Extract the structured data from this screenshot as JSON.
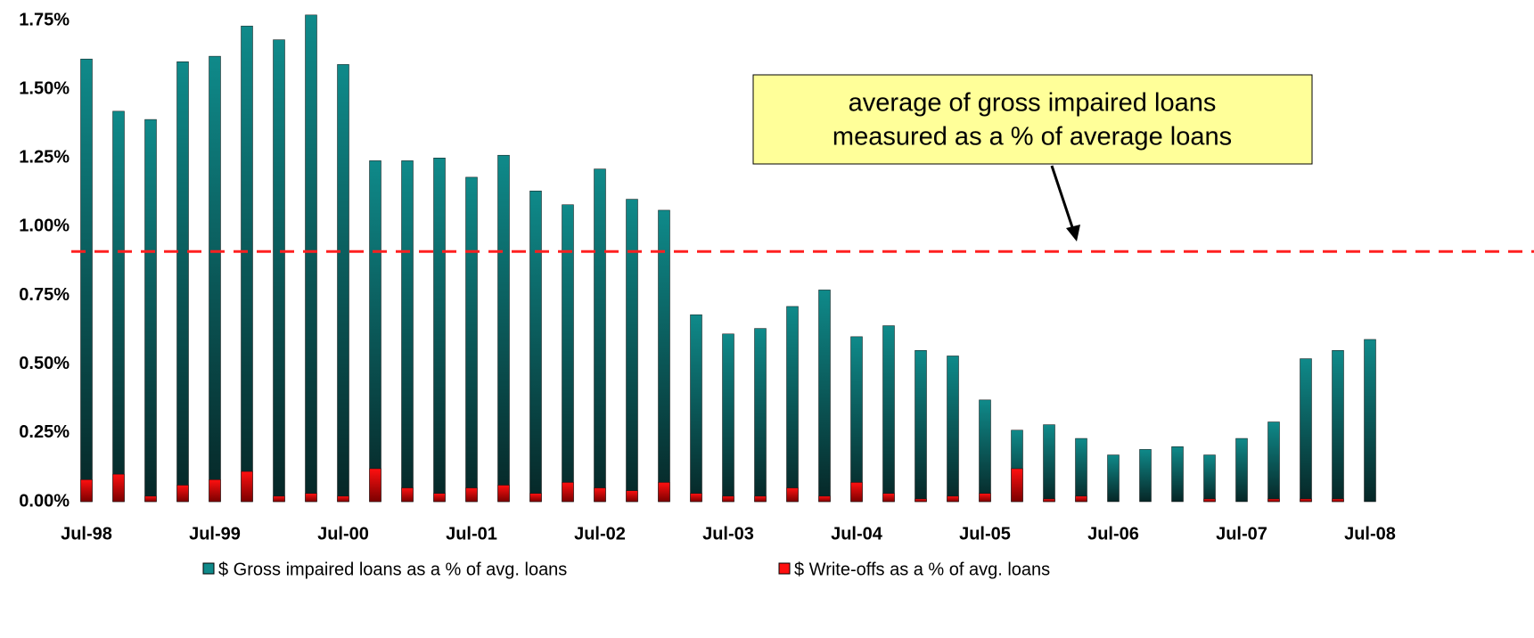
{
  "chart_data": {
    "type": "bar",
    "categories": [
      "Jul-98",
      null,
      null,
      null,
      "Jul-99",
      null,
      null,
      null,
      "Jul-00",
      null,
      null,
      null,
      "Jul-01",
      null,
      null,
      null,
      "Jul-02",
      null,
      null,
      null,
      "Jul-03",
      null,
      null,
      null,
      "Jul-04",
      null,
      null,
      null,
      "Jul-05",
      null,
      null,
      null,
      "Jul-06",
      null,
      null,
      null,
      "Jul-07",
      null,
      null,
      null,
      "Jul-08"
    ],
    "series": [
      {
        "name": "$ Gross impaired loans as a % of avg. loans",
        "color": "#0f8a8a",
        "values": [
          1.61,
          1.42,
          1.39,
          1.6,
          1.62,
          1.73,
          1.68,
          1.77,
          1.59,
          1.24,
          1.24,
          1.25,
          1.18,
          1.26,
          1.13,
          1.08,
          1.21,
          1.1,
          1.06,
          0.68,
          0.61,
          0.63,
          0.71,
          0.77,
          0.6,
          0.64,
          0.55,
          0.53,
          0.37,
          0.26,
          0.28,
          0.23,
          0.17,
          0.19,
          0.2,
          0.17,
          0.23,
          0.29,
          0.52,
          0.55,
          0.59
        ]
      },
      {
        "name": "$ Write-offs as a % of avg. loans",
        "color": "#ff1010",
        "values": [
          0.08,
          0.1,
          0.02,
          0.06,
          0.08,
          0.11,
          0.02,
          0.03,
          0.02,
          0.12,
          0.05,
          0.03,
          0.05,
          0.06,
          0.03,
          0.07,
          0.05,
          0.04,
          0.07,
          0.03,
          0.02,
          0.02,
          0.05,
          0.02,
          0.07,
          0.03,
          0.01,
          0.02,
          0.03,
          0.12,
          0.01,
          0.02,
          0,
          0,
          0,
          0.01,
          0,
          0.01,
          0.01,
          0.01,
          0
        ]
      }
    ],
    "ylim": [
      0,
      1.78
    ],
    "yticks": [
      {
        "value": 0,
        "label": "0.00%"
      },
      {
        "value": 0.25,
        "label": "0.25%"
      },
      {
        "value": 0.5,
        "label": "0.50%"
      },
      {
        "value": 0.75,
        "label": "0.75%"
      },
      {
        "value": 1.0,
        "label": "1.00%"
      },
      {
        "value": 1.25,
        "label": "1.25%"
      },
      {
        "value": 1.5,
        "label": "1.50%"
      },
      {
        "value": 1.75,
        "label": "1.75%"
      }
    ],
    "average_line": {
      "value": 0.91,
      "color": "#ff2020"
    },
    "annotation": [
      "average of gross impaired loans",
      "measured as a % of average loans"
    ],
    "legend": "bottom"
  }
}
